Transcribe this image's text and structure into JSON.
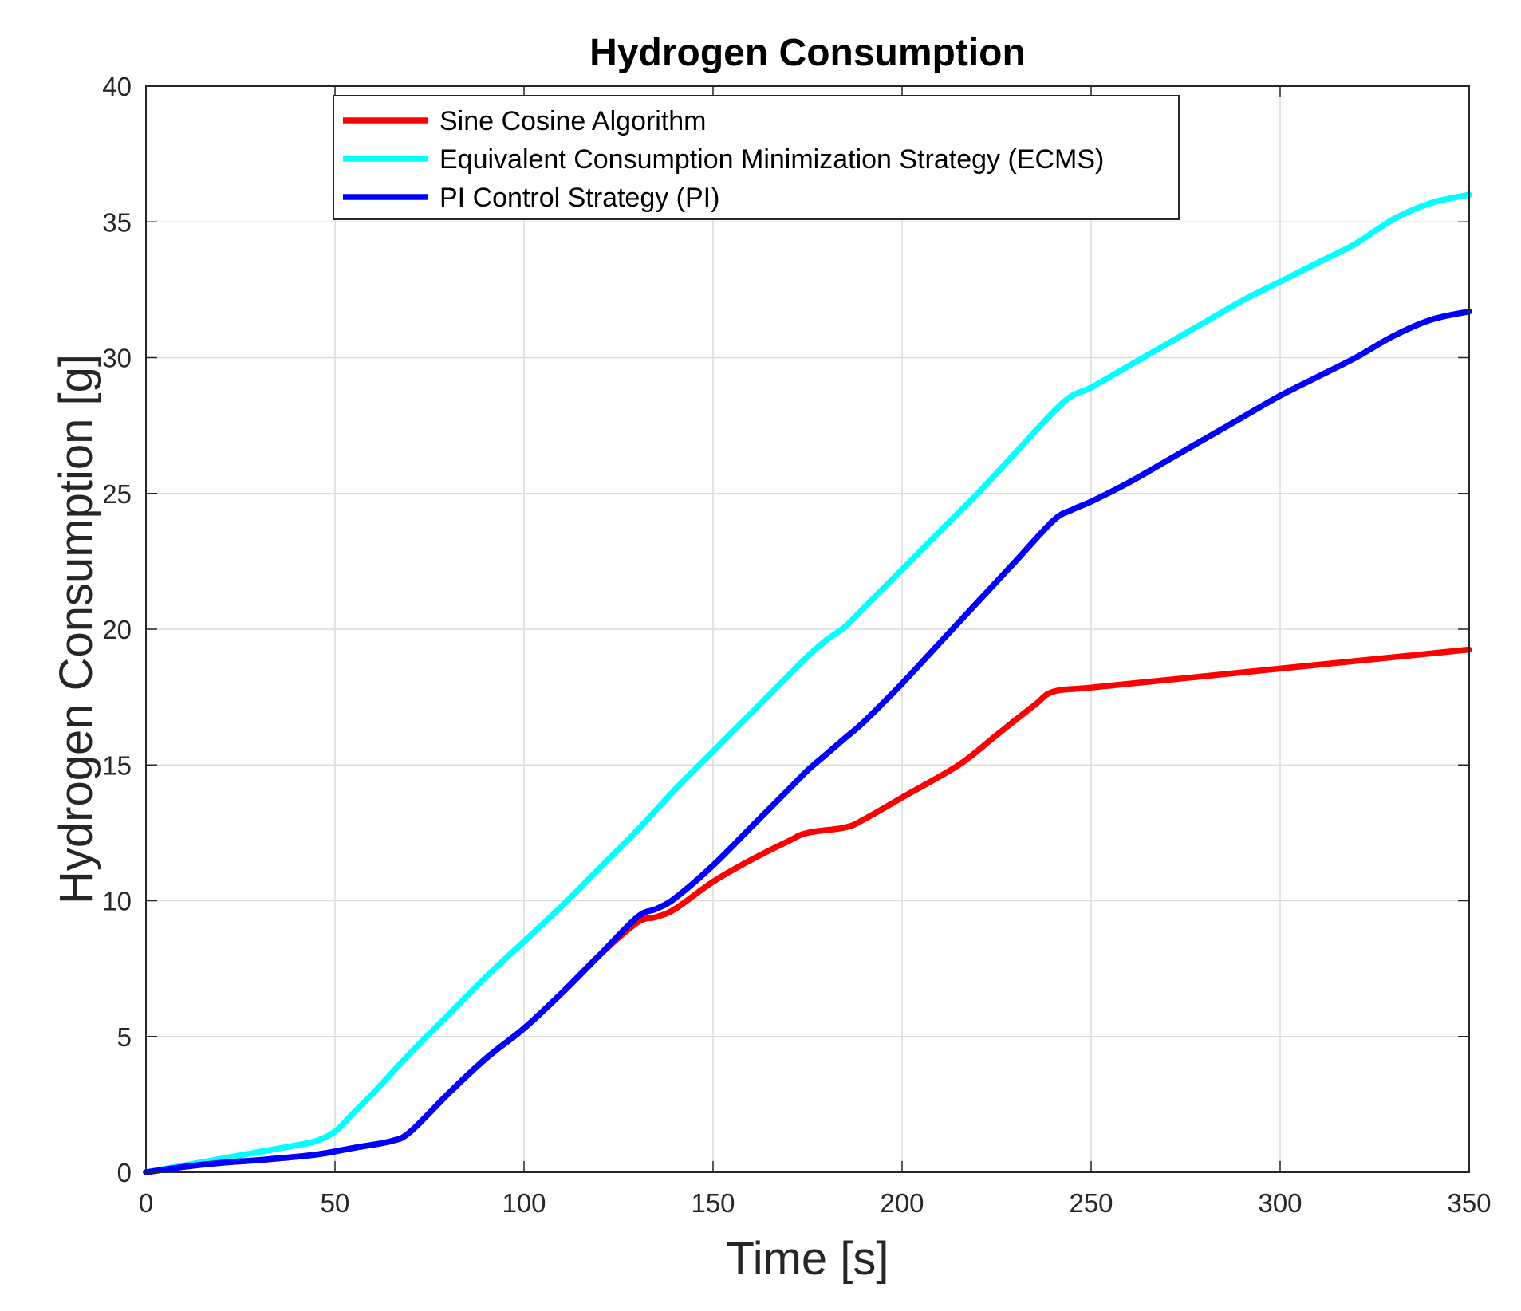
{
  "chart_data": {
    "type": "line",
    "title": "Hydrogen Consumption",
    "xlabel": "Time [s]",
    "ylabel": "Hydrogen Consumption [g]",
    "xlim": [
      0,
      350
    ],
    "ylim": [
      0,
      40
    ],
    "xticks": [
      0,
      50,
      100,
      150,
      200,
      250,
      300,
      350
    ],
    "yticks": [
      0,
      5,
      10,
      15,
      20,
      25,
      30,
      35,
      40
    ],
    "grid": true,
    "legend_position": "top-center",
    "series": [
      {
        "name": "Sine Cosine Algorithm",
        "color": "#ff0000",
        "x": [
          0,
          10,
          20,
          30,
          45,
          55,
          65,
          70,
          80,
          90,
          100,
          110,
          120,
          130,
          135,
          140,
          150,
          160,
          170,
          175,
          185,
          190,
          200,
          215,
          225,
          235,
          240,
          250,
          275,
          300,
          325,
          350
        ],
        "y": [
          0,
          0.2,
          0.35,
          0.45,
          0.65,
          0.9,
          1.15,
          1.5,
          2.9,
          4.2,
          5.3,
          6.6,
          8.0,
          9.2,
          9.4,
          9.7,
          10.7,
          11.5,
          12.2,
          12.5,
          12.7,
          13.0,
          13.8,
          15.0,
          16.1,
          17.2,
          17.7,
          17.85,
          18.2,
          18.55,
          18.9,
          19.25
        ]
      },
      {
        "name": "Equivalent Consumption Minimization Strategy (ECMS)",
        "color": "#00ffff",
        "x": [
          0,
          10,
          20,
          30,
          40,
          45,
          50,
          55,
          60,
          70,
          80,
          90,
          100,
          110,
          120,
          130,
          140,
          150,
          160,
          170,
          175,
          180,
          185,
          190,
          200,
          210,
          220,
          230,
          240,
          245,
          250,
          260,
          270,
          280,
          290,
          300,
          310,
          320,
          330,
          340,
          350
        ],
        "y": [
          0,
          0.25,
          0.5,
          0.75,
          1.0,
          1.15,
          1.5,
          2.2,
          2.9,
          4.4,
          5.8,
          7.2,
          8.5,
          9.8,
          11.2,
          12.6,
          14.1,
          15.5,
          16.9,
          18.3,
          19.0,
          19.6,
          20.1,
          20.8,
          22.2,
          23.6,
          25.0,
          26.5,
          28.0,
          28.6,
          28.9,
          29.7,
          30.5,
          31.3,
          32.1,
          32.8,
          33.5,
          34.2,
          35.1,
          35.7,
          36.0
        ]
      },
      {
        "name": "PI Control Strategy (PI)",
        "color": "#0000ff",
        "x": [
          0,
          10,
          20,
          30,
          45,
          55,
          65,
          70,
          80,
          90,
          100,
          110,
          120,
          130,
          135,
          140,
          150,
          160,
          170,
          175,
          180,
          185,
          190,
          200,
          210,
          220,
          230,
          240,
          245,
          250,
          260,
          270,
          280,
          290,
          300,
          310,
          320,
          330,
          340,
          350
        ],
        "y": [
          0,
          0.2,
          0.35,
          0.45,
          0.65,
          0.9,
          1.15,
          1.5,
          2.9,
          4.2,
          5.3,
          6.6,
          8.0,
          9.4,
          9.7,
          10.1,
          11.3,
          12.7,
          14.1,
          14.8,
          15.4,
          16.0,
          16.6,
          18.0,
          19.5,
          21.0,
          22.5,
          24.0,
          24.4,
          24.7,
          25.4,
          26.2,
          27.0,
          27.8,
          28.6,
          29.3,
          30.0,
          30.8,
          31.4,
          31.7
        ]
      }
    ]
  }
}
